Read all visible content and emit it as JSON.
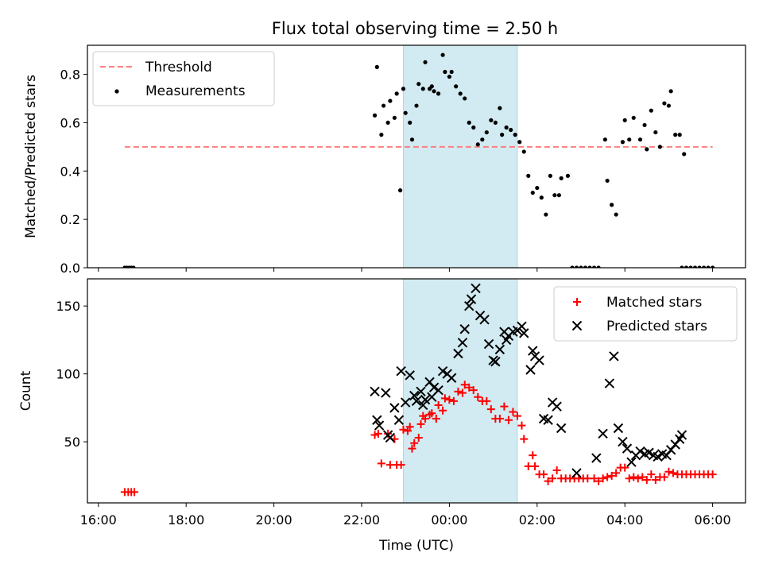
{
  "title": "Flux total observing time = 2.50 h",
  "colors": {
    "threshold": "#ff7f7f",
    "measurement": "#000000",
    "matched": "#ff0000",
    "predicted": "#000000",
    "shade": "#add8e6"
  },
  "chart_data": [
    {
      "type": "scatter",
      "ylabel": "Matched/Predicted stars",
      "xlim": [
        15.75,
        30.75
      ],
      "ylim": [
        0,
        0.92
      ],
      "yticks": [
        0.0,
        0.2,
        0.4,
        0.6,
        0.8
      ],
      "ytick_labels": [
        "0.0",
        "0.2",
        "0.4",
        "0.6",
        "0.8"
      ],
      "shaded_span": [
        22.95,
        25.55
      ],
      "legend": {
        "position": "top-left",
        "entries": [
          "Threshold",
          "Measurements"
        ]
      },
      "threshold": {
        "name": "Threshold",
        "x": [
          16.6,
          30.0
        ],
        "y": 0.5
      },
      "series": [
        {
          "name": "Measurements",
          "points": [
            [
              16.6,
              0.0
            ],
            [
              16.65,
              0.0
            ],
            [
              16.7,
              0.0
            ],
            [
              16.75,
              0.0
            ],
            [
              16.8,
              0.0
            ],
            [
              22.3,
              0.63
            ],
            [
              22.35,
              0.83
            ],
            [
              22.45,
              0.55
            ],
            [
              22.5,
              0.67
            ],
            [
              22.6,
              0.6
            ],
            [
              22.65,
              0.69
            ],
            [
              22.75,
              0.62
            ],
            [
              22.8,
              0.72
            ],
            [
              22.88,
              0.32
            ],
            [
              22.95,
              0.74
            ],
            [
              23.0,
              0.64
            ],
            [
              23.1,
              0.6
            ],
            [
              23.15,
              0.53
            ],
            [
              23.25,
              0.67
            ],
            [
              23.3,
              0.76
            ],
            [
              23.4,
              0.74
            ],
            [
              23.45,
              0.85
            ],
            [
              23.55,
              0.74
            ],
            [
              23.6,
              0.75
            ],
            [
              23.65,
              0.73
            ],
            [
              23.75,
              0.72
            ],
            [
              23.85,
              0.88
            ],
            [
              23.9,
              0.81
            ],
            [
              24.0,
              0.79
            ],
            [
              24.05,
              0.81
            ],
            [
              24.15,
              0.75
            ],
            [
              24.25,
              0.72
            ],
            [
              24.35,
              0.7
            ],
            [
              24.45,
              0.6
            ],
            [
              24.55,
              0.58
            ],
            [
              24.65,
              0.51
            ],
            [
              24.75,
              0.53
            ],
            [
              24.85,
              0.56
            ],
            [
              24.95,
              0.61
            ],
            [
              25.05,
              0.6
            ],
            [
              25.15,
              0.66
            ],
            [
              25.2,
              0.55
            ],
            [
              25.3,
              0.58
            ],
            [
              25.4,
              0.57
            ],
            [
              25.5,
              0.55
            ],
            [
              25.6,
              0.52
            ],
            [
              25.7,
              0.48
            ],
            [
              25.8,
              0.38
            ],
            [
              25.9,
              0.31
            ],
            [
              26.0,
              0.33
            ],
            [
              26.1,
              0.29
            ],
            [
              26.2,
              0.22
            ],
            [
              26.3,
              0.38
            ],
            [
              26.4,
              0.3
            ],
            [
              26.5,
              0.3
            ],
            [
              26.55,
              0.37
            ],
            [
              26.7,
              0.38
            ],
            [
              26.8,
              0.0
            ],
            [
              26.9,
              0.0
            ],
            [
              27.0,
              0.0
            ],
            [
              27.1,
              0.0
            ],
            [
              27.2,
              0.0
            ],
            [
              27.3,
              0.0
            ],
            [
              27.4,
              0.0
            ],
            [
              27.55,
              0.53
            ],
            [
              27.6,
              0.36
            ],
            [
              27.7,
              0.26
            ],
            [
              27.8,
              0.22
            ],
            [
              27.95,
              0.52
            ],
            [
              28.0,
              0.61
            ],
            [
              28.1,
              0.53
            ],
            [
              28.2,
              0.62
            ],
            [
              28.35,
              0.53
            ],
            [
              28.45,
              0.59
            ],
            [
              28.5,
              0.49
            ],
            [
              28.6,
              0.65
            ],
            [
              28.7,
              0.56
            ],
            [
              28.8,
              0.5
            ],
            [
              28.9,
              0.68
            ],
            [
              29.0,
              0.67
            ],
            [
              29.05,
              0.73
            ],
            [
              29.15,
              0.55
            ],
            [
              29.25,
              0.55
            ],
            [
              29.35,
              0.47
            ],
            [
              29.3,
              0.0
            ],
            [
              29.4,
              0.0
            ],
            [
              29.5,
              0.0
            ],
            [
              29.6,
              0.0
            ],
            [
              29.7,
              0.0
            ],
            [
              29.8,
              0.0
            ],
            [
              29.9,
              0.0
            ],
            [
              30.0,
              0.0
            ]
          ]
        }
      ]
    },
    {
      "type": "scatter",
      "xlabel": "Time (UTC)",
      "ylabel": "Count",
      "xlim": [
        15.75,
        30.75
      ],
      "ylim": [
        5,
        170
      ],
      "xticks": [
        16,
        18,
        20,
        22,
        24,
        26,
        28,
        30
      ],
      "xtick_labels": [
        "16:00",
        "18:00",
        "20:00",
        "22:00",
        "00:00",
        "02:00",
        "04:00",
        "06:00"
      ],
      "yticks": [
        50,
        100,
        150
      ],
      "ytick_labels": [
        "50",
        "100",
        "150"
      ],
      "shaded_span": [
        22.95,
        25.55
      ],
      "legend": {
        "position": "top-right",
        "entries": [
          "Matched stars",
          "Predicted stars"
        ]
      },
      "series": [
        {
          "name": "Matched stars",
          "points": [
            [
              16.6,
              13
            ],
            [
              16.68,
              13
            ],
            [
              16.75,
              13
            ],
            [
              16.82,
              13
            ],
            [
              22.3,
              55
            ],
            [
              22.38,
              56
            ],
            [
              22.45,
              34
            ],
            [
              22.6,
              56
            ],
            [
              22.65,
              33
            ],
            [
              22.75,
              52
            ],
            [
              22.8,
              33
            ],
            [
              22.9,
              33
            ],
            [
              22.95,
              59
            ],
            [
              23.05,
              58
            ],
            [
              23.1,
              61
            ],
            [
              23.15,
              45
            ],
            [
              23.2,
              49
            ],
            [
              23.3,
              53
            ],
            [
              23.35,
              63
            ],
            [
              23.4,
              69
            ],
            [
              23.45,
              67
            ],
            [
              23.55,
              70
            ],
            [
              23.6,
              71
            ],
            [
              23.7,
              67
            ],
            [
              23.75,
              77
            ],
            [
              23.85,
              73
            ],
            [
              23.9,
              82
            ],
            [
              24.0,
              81
            ],
            [
              24.1,
              80
            ],
            [
              24.2,
              87
            ],
            [
              24.3,
              86
            ],
            [
              24.35,
              92
            ],
            [
              24.45,
              90
            ],
            [
              24.55,
              88
            ],
            [
              24.65,
              83
            ],
            [
              24.75,
              80
            ],
            [
              24.85,
              80
            ],
            [
              24.95,
              74
            ],
            [
              25.05,
              67
            ],
            [
              25.15,
              67
            ],
            [
              25.25,
              76
            ],
            [
              25.35,
              66
            ],
            [
              25.45,
              72
            ],
            [
              25.55,
              69
            ],
            [
              25.65,
              62
            ],
            [
              25.7,
              52
            ],
            [
              25.8,
              32
            ],
            [
              25.9,
              40
            ],
            [
              25.95,
              32
            ],
            [
              26.05,
              26
            ],
            [
              26.15,
              26
            ],
            [
              26.25,
              21
            ],
            [
              26.35,
              23
            ],
            [
              26.45,
              29
            ],
            [
              26.55,
              23
            ],
            [
              26.65,
              23
            ],
            [
              26.75,
              23
            ],
            [
              26.85,
              23
            ],
            [
              26.95,
              23
            ],
            [
              27.05,
              23
            ],
            [
              27.15,
              23
            ],
            [
              27.3,
              23
            ],
            [
              27.4,
              21
            ],
            [
              27.5,
              23
            ],
            [
              27.6,
              24
            ],
            [
              27.7,
              25
            ],
            [
              27.8,
              27
            ],
            [
              27.9,
              31
            ],
            [
              28.0,
              31
            ],
            [
              28.1,
              23
            ],
            [
              28.2,
              24
            ],
            [
              28.3,
              23
            ],
            [
              28.4,
              24
            ],
            [
              28.5,
              22
            ],
            [
              28.6,
              26
            ],
            [
              28.7,
              22
            ],
            [
              28.8,
              24
            ],
            [
              28.9,
              24
            ],
            [
              29.0,
              28
            ],
            [
              29.1,
              27
            ],
            [
              29.2,
              26
            ],
            [
              29.3,
              26
            ],
            [
              29.4,
              26
            ],
            [
              29.5,
              26
            ],
            [
              29.6,
              26
            ],
            [
              29.7,
              26
            ],
            [
              29.8,
              26
            ],
            [
              29.9,
              26
            ],
            [
              30.0,
              26
            ]
          ]
        },
        {
          "name": "Predicted stars",
          "points": [
            [
              22.3,
              87
            ],
            [
              22.35,
              66
            ],
            [
              22.4,
              62
            ],
            [
              22.55,
              86
            ],
            [
              22.6,
              55
            ],
            [
              22.65,
              53
            ],
            [
              22.75,
              75
            ],
            [
              22.85,
              66
            ],
            [
              22.9,
              102
            ],
            [
              23.0,
              79
            ],
            [
              23.1,
              99
            ],
            [
              23.2,
              84
            ],
            [
              23.25,
              80
            ],
            [
              23.35,
              87
            ],
            [
              23.4,
              77
            ],
            [
              23.45,
              81
            ],
            [
              23.55,
              94
            ],
            [
              23.6,
              83
            ],
            [
              23.65,
              90
            ],
            [
              23.75,
              88
            ],
            [
              23.85,
              102
            ],
            [
              23.95,
              100
            ],
            [
              24.05,
              97
            ],
            [
              24.2,
              115
            ],
            [
              24.3,
              123
            ],
            [
              24.35,
              133
            ],
            [
              24.45,
              150
            ],
            [
              24.5,
              155
            ],
            [
              24.6,
              163
            ],
            [
              24.7,
              143
            ],
            [
              24.8,
              140
            ],
            [
              24.9,
              122
            ],
            [
              25.0,
              110
            ],
            [
              25.05,
              109
            ],
            [
              25.15,
              118
            ],
            [
              25.25,
              131
            ],
            [
              25.3,
              125
            ],
            [
              25.35,
              128
            ],
            [
              25.45,
              131
            ],
            [
              25.55,
              132
            ],
            [
              25.65,
              135
            ],
            [
              25.7,
              130
            ],
            [
              25.85,
              103
            ],
            [
              25.9,
              117
            ],
            [
              25.95,
              113
            ],
            [
              26.05,
              110
            ],
            [
              26.15,
              67
            ],
            [
              26.25,
              66
            ],
            [
              26.35,
              79
            ],
            [
              26.45,
              76
            ],
            [
              26.55,
              60
            ],
            [
              26.9,
              27
            ],
            [
              27.35,
              38
            ],
            [
              27.5,
              56
            ],
            [
              27.65,
              93
            ],
            [
              27.75,
              113
            ],
            [
              27.85,
              60
            ],
            [
              27.95,
              50
            ],
            [
              28.05,
              45
            ],
            [
              28.15,
              35
            ],
            [
              28.25,
              40
            ],
            [
              28.35,
              43
            ],
            [
              28.45,
              41
            ],
            [
              28.55,
              42
            ],
            [
              28.65,
              40
            ],
            [
              28.75,
              39
            ],
            [
              28.85,
              41
            ],
            [
              28.95,
              40
            ],
            [
              29.05,
              44
            ],
            [
              29.15,
              48
            ],
            [
              29.25,
              52
            ],
            [
              29.3,
              55
            ]
          ]
        }
      ]
    }
  ]
}
